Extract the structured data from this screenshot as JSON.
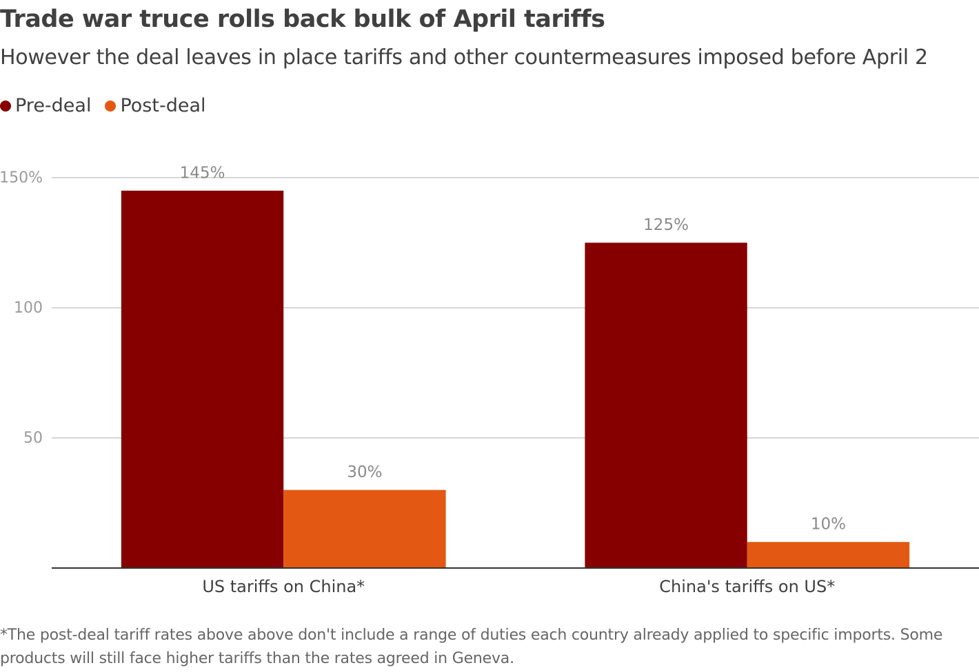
{
  "chart_data": {
    "type": "bar",
    "title": "Trade war truce rolls back bulk of April tariffs",
    "subtitle": "However the deal leaves in place tariffs and other countermeasures imposed before April 2",
    "categories": [
      "US tariffs on China*",
      "China's tariffs on US*"
    ],
    "series": [
      {
        "name": "Pre-deal",
        "color": "#870000",
        "values": [
          145,
          125
        ],
        "value_labels": [
          "145%",
          "125%"
        ]
      },
      {
        "name": "Post-deal",
        "color": "#e35812",
        "values": [
          30,
          10
        ],
        "value_labels": [
          "30%",
          "10%"
        ]
      }
    ],
    "ylim": [
      0,
      150
    ],
    "yticks": [
      50,
      100,
      {
        "value": 150,
        "label": "150%"
      }
    ],
    "grid": true,
    "legend": "top-left",
    "footnote": "*The post-deal tariff rates above above don't include a range of duties each country already applied to specific imports. Some products will still face higher tariffs than the rates agreed in Geneva."
  }
}
